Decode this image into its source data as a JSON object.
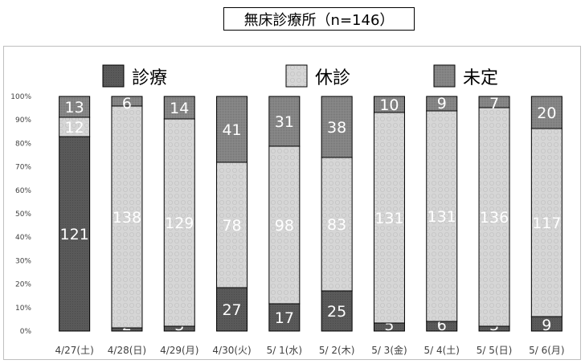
{
  "chart_data": {
    "type": "bar",
    "stacked": true,
    "normalized": true,
    "title": "無床診療所（n=146）",
    "categories": [
      "4/27(土)",
      "4/28(日)",
      "4/29(月)",
      "4/30(火)",
      "5/ 1(水)",
      "5/ 2(木)",
      "5/ 3(金)",
      "5/ 4(土)",
      "5/ 5(日)",
      "5/ 6(月)"
    ],
    "series": [
      {
        "name": "診療",
        "values": [
          121,
          2,
          3,
          27,
          17,
          25,
          5,
          6,
          3,
          9
        ],
        "color": "#595959"
      },
      {
        "name": "休診",
        "values": [
          12,
          138,
          129,
          78,
          98,
          83,
          131,
          131,
          136,
          117
        ],
        "color": "#d9d9d9"
      },
      {
        "name": "未定",
        "values": [
          13,
          6,
          14,
          41,
          31,
          38,
          10,
          9,
          7,
          20
        ],
        "color": "#7f7f7f"
      }
    ],
    "y_ticks": [
      "0%",
      "10%",
      "20%",
      "30%",
      "40%",
      "50%",
      "60%",
      "70%",
      "80%",
      "90%",
      "100%"
    ],
    "ylim": [
      0,
      100
    ],
    "grid": false,
    "legend_position": "top"
  }
}
